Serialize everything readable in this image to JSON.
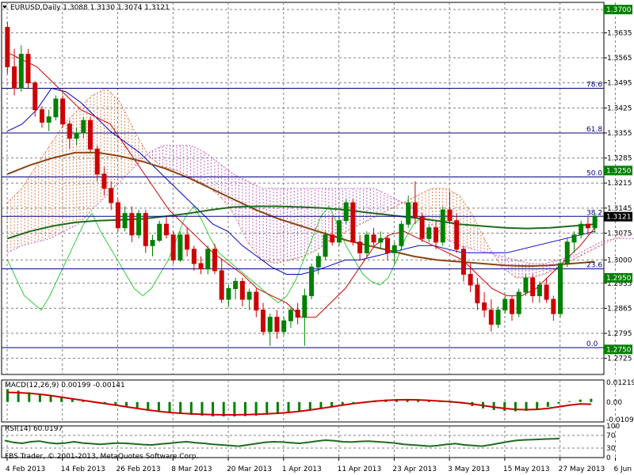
{
  "window": {
    "symbol_line": "EURUSD,Daily  1.3088 1.3130 1.3074 1.3121",
    "copyright": "FBS Trader, © 2001-2013, MetaQuotes Software Corp.",
    "macd_label": "MACD(12,26,9) 0.00199 -0.00141",
    "rsi_label": "RSI(14) 60.0197"
  },
  "colors": {
    "background": "#ffffff",
    "grid": "#808080",
    "bull_candle": "#008000",
    "bear_candle": "#cc0000",
    "ema_brown": "#8b4513",
    "sma_green": "#1f6b1f",
    "tenkan": "#cc0000",
    "kijun": "#0000cc",
    "chikou": "#33cc33",
    "cloud_up": "#e08050",
    "cloud_down": "#c060c0",
    "fib": "#000080",
    "macd_hist": "#008000",
    "macd_signal": "#cc0000",
    "rsi_line": "#1f6b1f",
    "price_tag_bg": "#000000",
    "level_tag_bg": "#008000"
  },
  "chart_data": {
    "type": "candlestick",
    "price_axis": {
      "min": 1.268,
      "max": 1.372,
      "ticks": [
        "1.3700",
        "1.3635",
        "1.3565",
        "1.3495",
        "1.3425",
        "1.3355",
        "1.3285",
        "1.3215",
        "1.3145",
        "1.3075",
        "1.3000",
        "1.2935",
        "1.2865",
        "1.2795",
        "1.2725"
      ]
    },
    "date_labels": [
      "4 Feb 2013",
      "14 Feb 2013",
      "26 Feb 2013",
      "8 Mar 2013",
      "20 Mar 2013",
      "1 Apr 2013",
      "11 Apr 2013",
      "23 Apr 2013",
      "3 May 2013",
      "15 May 2013",
      "27 May 2013",
      "6 Jun 2013"
    ],
    "date_label_candle_index": [
      0,
      8,
      16,
      24,
      32,
      40,
      48,
      56,
      64,
      72,
      80,
      88
    ],
    "last_price": "1.3121",
    "level_tags": [
      {
        "label": "1.3700",
        "price": 1.37
      },
      {
        "label": "1.3250",
        "price": 1.325
      },
      {
        "label": "1.2950",
        "price": 1.295
      },
      {
        "label": "1.2750",
        "price": 1.275
      }
    ],
    "fibonacci": [
      {
        "label": "78.6",
        "price": 1.348
      },
      {
        "label": "61.8",
        "price": 1.3355
      },
      {
        "label": "50.0",
        "price": 1.3232
      },
      {
        "label": "38.2",
        "price": 1.3122
      },
      {
        "label": "23.6",
        "price": 1.2975
      },
      {
        "label": "0.0",
        "price": 1.2755
      }
    ],
    "candles": [
      [
        1.365,
        1.3665,
        1.352,
        1.354
      ],
      [
        1.354,
        1.359,
        1.346,
        1.348
      ],
      [
        1.348,
        1.36,
        1.347,
        1.3575
      ],
      [
        1.3575,
        1.359,
        1.348,
        1.3495
      ],
      [
        1.3495,
        1.35,
        1.34,
        1.342
      ],
      [
        1.342,
        1.343,
        1.337,
        1.3385
      ],
      [
        1.3385,
        1.342,
        1.336,
        1.34
      ],
      [
        1.34,
        1.346,
        1.339,
        1.345
      ],
      [
        1.345,
        1.346,
        1.337,
        1.338
      ],
      [
        1.338,
        1.339,
        1.331,
        1.334
      ],
      [
        1.334,
        1.337,
        1.332,
        1.3355
      ],
      [
        1.3355,
        1.34,
        1.334,
        1.339
      ],
      [
        1.339,
        1.34,
        1.33,
        1.331
      ],
      [
        1.331,
        1.332,
        1.322,
        1.324
      ],
      [
        1.324,
        1.326,
        1.318,
        1.32
      ],
      [
        1.32,
        1.322,
        1.314,
        1.316
      ],
      [
        1.316,
        1.317,
        1.308,
        1.309
      ],
      [
        1.309,
        1.315,
        1.308,
        1.313
      ],
      [
        1.313,
        1.315,
        1.305,
        1.307
      ],
      [
        1.307,
        1.314,
        1.306,
        1.313
      ],
      [
        1.313,
        1.314,
        1.302,
        1.304
      ],
      [
        1.304,
        1.307,
        1.301,
        1.3055
      ],
      [
        1.3055,
        1.311,
        1.305,
        1.31
      ],
      [
        1.31,
        1.312,
        1.306,
        1.307
      ],
      [
        1.307,
        1.308,
        1.299,
        1.3
      ],
      [
        1.3,
        1.308,
        1.2995,
        1.307
      ],
      [
        1.307,
        1.309,
        1.301,
        1.303
      ],
      [
        1.303,
        1.304,
        1.297,
        1.299
      ],
      [
        1.299,
        1.301,
        1.296,
        1.2975
      ],
      [
        1.2975,
        1.304,
        1.296,
        1.303
      ],
      [
        1.303,
        1.3045,
        1.296,
        1.297
      ],
      [
        1.297,
        1.3,
        1.288,
        1.289
      ],
      [
        1.289,
        1.293,
        1.287,
        1.292
      ],
      [
        1.292,
        1.295,
        1.289,
        1.294
      ],
      [
        1.294,
        1.295,
        1.287,
        1.289
      ],
      [
        1.289,
        1.292,
        1.286,
        1.291
      ],
      [
        1.291,
        1.292,
        1.284,
        1.286
      ],
      [
        1.286,
        1.288,
        1.279,
        1.28
      ],
      [
        1.28,
        1.285,
        1.276,
        1.284
      ],
      [
        1.284,
        1.286,
        1.278,
        1.28
      ],
      [
        1.28,
        1.284,
        1.279,
        1.283
      ],
      [
        1.283,
        1.287,
        1.281,
        1.286
      ],
      [
        1.286,
        1.288,
        1.282,
        1.284
      ],
      [
        1.284,
        1.292,
        1.276,
        1.29
      ],
      [
        1.29,
        1.299,
        1.289,
        1.298
      ],
      [
        1.298,
        1.302,
        1.296,
        1.301
      ],
      [
        1.301,
        1.308,
        1.3,
        1.307
      ],
      [
        1.307,
        1.312,
        1.304,
        1.305
      ],
      [
        1.305,
        1.312,
        1.304,
        1.311
      ],
      [
        1.311,
        1.317,
        1.31,
        1.316
      ],
      [
        1.316,
        1.317,
        1.304,
        1.305
      ],
      [
        1.305,
        1.307,
        1.3,
        1.302
      ],
      [
        1.302,
        1.308,
        1.301,
        1.307
      ],
      [
        1.307,
        1.309,
        1.304,
        1.305
      ],
      [
        1.305,
        1.308,
        1.303,
        1.306
      ],
      [
        1.306,
        1.307,
        1.3,
        1.302
      ],
      [
        1.302,
        1.305,
        1.299,
        1.304
      ],
      [
        1.304,
        1.311,
        1.303,
        1.31
      ],
      [
        1.31,
        1.318,
        1.309,
        1.316
      ],
      [
        1.316,
        1.322,
        1.31,
        1.312
      ],
      [
        1.312,
        1.313,
        1.305,
        1.306
      ],
      [
        1.306,
        1.31,
        1.305,
        1.309
      ],
      [
        1.309,
        1.311,
        1.303,
        1.305
      ],
      [
        1.305,
        1.315,
        1.304,
        1.314
      ],
      [
        1.314,
        1.319,
        1.31,
        1.311
      ],
      [
        1.311,
        1.313,
        1.302,
        1.303
      ],
      [
        1.303,
        1.304,
        1.294,
        1.296
      ],
      [
        1.296,
        1.299,
        1.291,
        1.293
      ],
      [
        1.293,
        1.295,
        1.286,
        1.288
      ],
      [
        1.288,
        1.291,
        1.284,
        1.286
      ],
      [
        1.286,
        1.289,
        1.28,
        1.282
      ],
      [
        1.282,
        1.287,
        1.281,
        1.286
      ],
      [
        1.286,
        1.29,
        1.285,
        1.289
      ],
      [
        1.289,
        1.29,
        1.283,
        1.285
      ],
      [
        1.285,
        1.292,
        1.284,
        1.291
      ],
      [
        1.291,
        1.296,
        1.29,
        1.295
      ],
      [
        1.295,
        1.296,
        1.288,
        1.29
      ],
      [
        1.29,
        1.294,
        1.288,
        1.293
      ],
      [
        1.293,
        1.295,
        1.288,
        1.289
      ],
      [
        1.289,
        1.29,
        1.283,
        1.285
      ],
      [
        1.285,
        1.3,
        1.284,
        1.299
      ],
      [
        1.299,
        1.306,
        1.298,
        1.305
      ],
      [
        1.305,
        1.308,
        1.302,
        1.307
      ],
      [
        1.307,
        1.311,
        1.306,
        1.31
      ],
      [
        1.31,
        1.312,
        1.307,
        1.309
      ],
      [
        1.309,
        1.313,
        1.3074,
        1.3121
      ]
    ],
    "ema_brown": [
      1.324,
      1.3265,
      1.3285,
      1.33,
      1.33,
      1.329,
      1.3275,
      1.3255,
      1.323,
      1.32,
      1.317,
      1.314,
      1.3115,
      1.3095,
      1.3075,
      1.3055,
      1.304,
      1.3025,
      1.301,
      1.3,
      1.2995,
      1.299,
      1.2985,
      1.2983,
      1.2985,
      1.299,
      1.2995
    ],
    "sma_green": [
      1.306,
      1.308,
      1.3095,
      1.3105,
      1.311,
      1.3112,
      1.3115,
      1.3122,
      1.313,
      1.314,
      1.3148,
      1.315,
      1.315,
      1.3148,
      1.3145,
      1.314,
      1.3132,
      1.3125,
      1.3118,
      1.311,
      1.31,
      1.3095,
      1.309,
      1.3088,
      1.309,
      1.3095,
      1.31
    ],
    "tenkan": [
      1.358,
      1.356,
      1.354,
      1.35,
      1.346,
      1.342,
      1.34,
      1.338,
      1.332,
      1.326,
      1.32,
      1.314,
      1.31,
      1.306,
      1.302,
      1.299,
      1.296,
      1.292,
      1.29,
      1.288,
      1.284,
      1.284,
      1.288,
      1.292,
      1.298,
      1.304,
      1.307,
      1.308,
      1.306,
      1.304,
      1.302,
      1.3,
      1.296,
      1.292,
      1.29,
      1.29,
      1.292,
      1.296,
      1.3,
      1.304,
      1.309
    ],
    "kijun": [
      1.336,
      1.338,
      1.342,
      1.348,
      1.347,
      1.344,
      1.34,
      1.336,
      1.333,
      1.33,
      1.326,
      1.322,
      1.318,
      1.314,
      1.31,
      1.308,
      1.304,
      1.301,
      1.298,
      1.296,
      1.296,
      1.297,
      1.2985,
      1.3,
      1.3,
      1.301,
      1.302,
      1.303,
      1.304,
      1.304,
      1.303,
      1.302,
      1.302,
      1.302,
      1.302,
      1.303,
      1.304,
      1.305,
      1.306,
      1.307,
      1.308
    ],
    "chikou": [
      1.3,
      1.295,
      1.29,
      1.288,
      1.286,
      1.29,
      1.295,
      1.3,
      1.305,
      1.31,
      1.313,
      1.308,
      1.304,
      1.3,
      1.296,
      1.292,
      1.29,
      1.292,
      1.296,
      1.3,
      1.306,
      1.312,
      1.315,
      1.311,
      1.306,
      1.302,
      1.3,
      1.298,
      1.296,
      1.294,
      1.292,
      1.29,
      1.288,
      1.29,
      1.294,
      1.3,
      1.306,
      1.312,
      1.315,
      1.31,
      1.304,
      1.3,
      1.296,
      1.294,
      1.293,
      1.295,
      1.3,
      1.306,
      1.31,
      1.312
    ],
    "cloud_a": [
      1.316,
      1.32,
      1.326,
      1.332,
      1.338,
      1.342,
      1.346,
      1.348,
      1.344,
      1.336,
      1.329,
      1.326,
      1.325,
      1.323,
      1.321,
      1.318,
      1.313,
      1.305,
      1.3,
      1.299,
      1.3,
      1.301,
      1.303,
      1.306,
      1.308,
      1.31,
      1.312,
      1.314,
      1.316,
      1.318,
      1.32,
      1.32,
      1.318,
      1.312,
      1.304,
      1.298,
      1.295,
      1.295,
      1.296,
      1.298,
      1.3,
      1.302,
      1.304,
      1.306,
      1.307,
      1.308
    ],
    "cloud_b": [
      1.302,
      1.304,
      1.305,
      1.306,
      1.308,
      1.31,
      1.314,
      1.318,
      1.322,
      1.326,
      1.33,
      1.332,
      1.332,
      1.332,
      1.33,
      1.327,
      1.324,
      1.322,
      1.32,
      1.32,
      1.32,
      1.32,
      1.32,
      1.32,
      1.32,
      1.32,
      1.32,
      1.318,
      1.316,
      1.314,
      1.31,
      1.306,
      1.304,
      1.303,
      1.302,
      1.301,
      1.3,
      1.299,
      1.299,
      1.3,
      1.301,
      1.303,
      1.305,
      1.306,
      1.306,
      1.306
    ],
    "macd_axis": {
      "ticks": [
        "0.01219",
        "0.00",
        "-0.01093"
      ],
      "values": [
        0.01219,
        0.0,
        -0.01093
      ]
    },
    "macd_hist": [
      0.008,
      0.007,
      0.006,
      0.005,
      0.004,
      0.003,
      0.002,
      0.001,
      0.0,
      -0.001,
      -0.002,
      -0.003,
      -0.004,
      -0.005,
      -0.006,
      -0.007,
      -0.0075,
      -0.008,
      -0.0085,
      -0.009,
      -0.009,
      -0.009,
      -0.0088,
      -0.0085,
      -0.008,
      -0.0075,
      -0.007,
      -0.006,
      -0.005,
      -0.004,
      -0.003,
      -0.002,
      -0.001,
      0.0,
      0.001,
      0.0015,
      0.0018,
      0.0018,
      0.0015,
      0.001,
      0.0005,
      0.0,
      -0.001,
      -0.0025,
      -0.004,
      -0.005,
      -0.0055,
      -0.0058,
      -0.0055,
      -0.0045,
      -0.003,
      -0.001,
      0.0005,
      0.0015,
      0.002
    ],
    "macd_signal": [
      0.006,
      0.0058,
      0.0054,
      0.0048,
      0.004,
      0.003,
      0.002,
      0.001,
      0.0,
      -0.001,
      -0.002,
      -0.003,
      -0.004,
      -0.005,
      -0.0058,
      -0.0065,
      -0.007,
      -0.0074,
      -0.0077,
      -0.0079,
      -0.008,
      -0.008,
      -0.0079,
      -0.0077,
      -0.0074,
      -0.007,
      -0.0065,
      -0.0058,
      -0.005,
      -0.004,
      -0.003,
      -0.002,
      -0.001,
      -0.0002,
      0.0005,
      0.001,
      0.0013,
      0.0014,
      0.0013,
      0.001,
      0.0006,
      0.0002,
      -0.0004,
      -0.0012,
      -0.0022,
      -0.0032,
      -0.004,
      -0.0046,
      -0.0048,
      -0.0046,
      -0.004,
      -0.003,
      -0.002,
      -0.0012,
      -0.0014
    ],
    "rsi_axis": {
      "ticks": [
        "100",
        "70",
        "30",
        "0"
      ],
      "values": [
        100,
        70,
        30,
        0
      ]
    },
    "rsi": [
      54,
      48,
      45,
      50,
      52,
      47,
      44,
      46,
      50,
      46,
      44,
      42,
      44,
      46,
      45,
      43,
      41,
      40,
      43,
      45,
      48,
      50,
      47,
      45,
      42,
      40,
      38,
      36,
      40,
      44,
      48,
      50,
      49,
      47,
      45,
      48,
      52,
      55,
      53,
      50,
      49,
      51,
      52,
      50,
      48,
      46,
      42,
      40,
      38,
      36,
      38,
      42,
      44,
      40,
      38,
      36,
      40,
      45,
      50,
      54,
      56,
      57,
      58,
      59,
      60
    ]
  }
}
